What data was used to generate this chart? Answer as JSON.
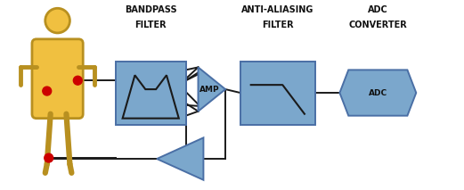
{
  "bg_color": "#ffffff",
  "figure_size": [
    5.21,
    2.13
  ],
  "dpi": 100,
  "box_fill": "#7ba7cc",
  "box_edge": "#4a6fa5",
  "line_color": "#1a1a1a",
  "red_dot": "#cc0000",
  "person_fill": "#f0c040",
  "person_edge": "#b89020",
  "text_color": "#111111",
  "labels": {
    "bandpass1": "BANDPASS",
    "bandpass2": "FILTER",
    "anti1": "ANTI-ALIASING",
    "anti2": "FILTER",
    "adc1": "ADC",
    "adc2": "CONVERTER",
    "amp": "AMP",
    "adc_box": "ADC"
  },
  "label_fontsize": 7.0,
  "component_fontsize": 6.5
}
